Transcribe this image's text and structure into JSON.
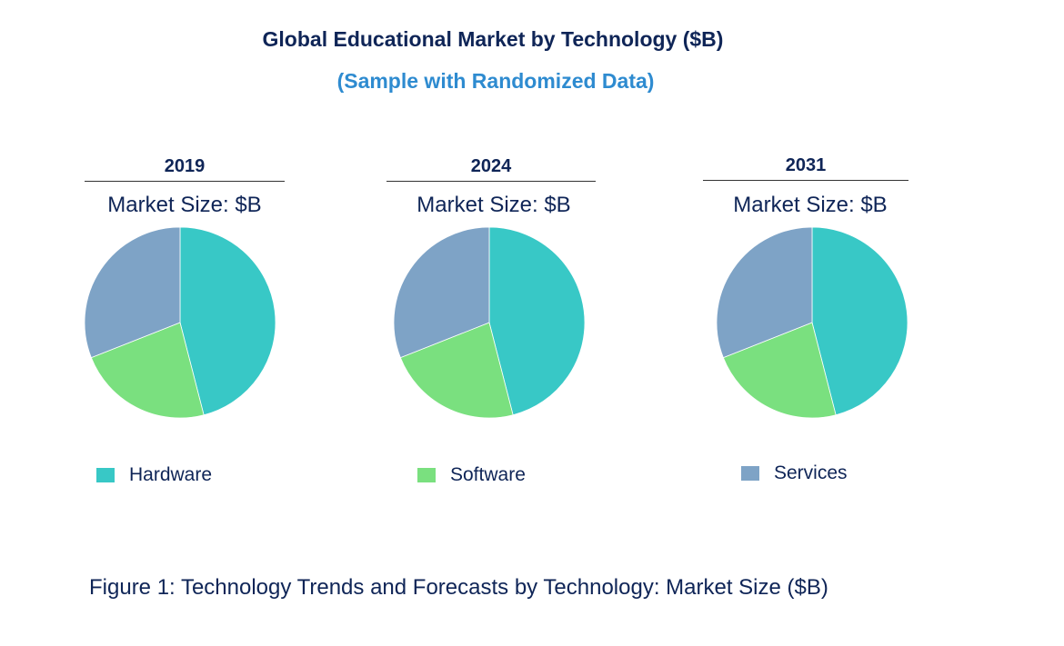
{
  "chart_data": {
    "type": "pie",
    "title": "Global Educational Market by Technology ($B)",
    "subtitle": "(Sample with Randomized Data)",
    "categories": [
      "Hardware",
      "Software",
      "Services"
    ],
    "colors": [
      "#38c8c6",
      "#7ae07f",
      "#7ea3c6"
    ],
    "legend_position": "bottom",
    "charts": [
      {
        "year": "2019",
        "label": "Market Size: $B",
        "values": [
          46,
          23,
          31
        ]
      },
      {
        "year": "2024",
        "label": "Market Size: $B",
        "values": [
          46,
          23,
          31
        ]
      },
      {
        "year": "2031",
        "label": "Market Size: $B",
        "values": [
          46,
          23,
          31
        ]
      }
    ],
    "caption": "Figure 1: Technology Trends and Forecasts by Technology: Market Size ($B)"
  }
}
